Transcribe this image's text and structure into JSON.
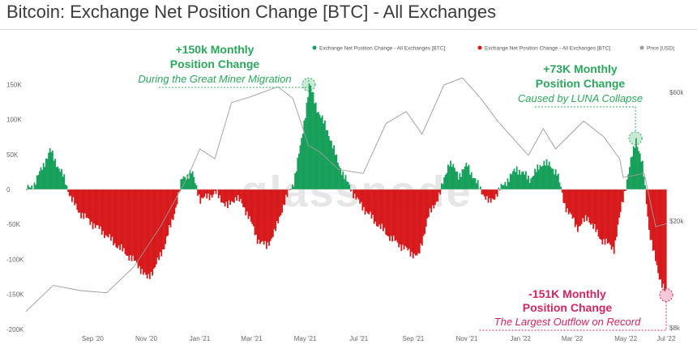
{
  "title": "Bitcoin: Exchange Net Position Change [BTC] - All Exchanges",
  "watermark": "glassnode",
  "colors": {
    "inflow": "#16a05a",
    "outflow": "#d7191c",
    "price": "#9b9b9b",
    "annotation_green": "#2aa85c",
    "annotation_red": "#d6245e"
  },
  "legend": [
    {
      "label": "Exchange Net Position Change - All Exchanges [BTC]",
      "color": "#16a05a"
    },
    {
      "label": "Exchange Net Position Change - All Exchanges [BTC]",
      "color": "#d7191c"
    },
    {
      "label": "Price [USD]",
      "color": "#9b9b9b"
    }
  ],
  "annotations": [
    {
      "line1": "+150k Monthly",
      "line2": "Position Change",
      "line3": "During the Great Miner Migration",
      "tone": "green",
      "date": "2021-05-19",
      "value": 150000
    },
    {
      "line1": "+73K Monthly",
      "line2": "Position Change",
      "line3": "Caused by LUNA Collapse",
      "tone": "green",
      "date": "2022-05-26",
      "value": 73000
    },
    {
      "line1": "-151K Monthly",
      "line2": "Position Change",
      "line3": "The Largest Outflow on Record",
      "tone": "red",
      "date": "2022-06-30",
      "value": -151000
    }
  ],
  "chart_data": {
    "type": "area",
    "x_start": "2020-07-01",
    "x_end": "2022-06-30",
    "x_ticks": [
      "Sep '20",
      "Nov '20",
      "Jan '21",
      "Mar '21",
      "May '21",
      "Jul '21",
      "Sep '21",
      "Nov '21",
      "Jan '22",
      "Mar '22",
      "May '22",
      "Jul '22"
    ],
    "y_left_ticks": [
      "150K",
      "100K",
      "50K",
      "0",
      "-50K",
      "-100K",
      "-150K",
      "-200K"
    ],
    "y_left_range": [
      -200000,
      165000
    ],
    "y_right_ticks": [
      "$60k",
      "$20k",
      "$8k"
    ],
    "y_right_scale": "log",
    "y_right_range": [
      8000,
      70000
    ],
    "grid": false,
    "legend_position": "top-right",
    "series": [
      {
        "kind": "position_change",
        "points": [
          [
            "2020-07-01",
            0
          ],
          [
            "2020-07-10",
            8000
          ],
          [
            "2020-07-20",
            35000
          ],
          [
            "2020-07-28",
            56000
          ],
          [
            "2020-08-03",
            40000
          ],
          [
            "2020-08-12",
            18000
          ],
          [
            "2020-08-20",
            -10000
          ],
          [
            "2020-08-28",
            -30000
          ],
          [
            "2020-09-10",
            -45000
          ],
          [
            "2020-09-25",
            -60000
          ],
          [
            "2020-10-10",
            -78000
          ],
          [
            "2020-10-25",
            -95000
          ],
          [
            "2020-11-05",
            -108000
          ],
          [
            "2020-11-15",
            -128000
          ],
          [
            "2020-11-25",
            -110000
          ],
          [
            "2020-12-05",
            -80000
          ],
          [
            "2020-12-15",
            -40000
          ],
          [
            "2020-12-25",
            15000
          ],
          [
            "2021-01-05",
            25000
          ],
          [
            "2021-01-15",
            -15000
          ],
          [
            "2021-02-01",
            -5000
          ],
          [
            "2021-02-15",
            -25000
          ],
          [
            "2021-02-25",
            -10000
          ],
          [
            "2021-03-10",
            -35000
          ],
          [
            "2021-03-20",
            -70000
          ],
          [
            "2021-03-31",
            -82000
          ],
          [
            "2021-04-10",
            -60000
          ],
          [
            "2021-04-20",
            -20000
          ],
          [
            "2021-05-01",
            10000
          ],
          [
            "2021-05-10",
            70000
          ],
          [
            "2021-05-19",
            150000
          ],
          [
            "2021-05-28",
            115000
          ],
          [
            "2021-06-10",
            80000
          ],
          [
            "2021-06-20",
            40000
          ],
          [
            "2021-07-01",
            10000
          ],
          [
            "2021-07-15",
            -20000
          ],
          [
            "2021-08-01",
            -45000
          ],
          [
            "2021-08-20",
            -70000
          ],
          [
            "2021-09-05",
            -85000
          ],
          [
            "2021-09-20",
            -97000
          ],
          [
            "2021-10-01",
            -40000
          ],
          [
            "2021-10-15",
            -5000
          ],
          [
            "2021-10-25",
            40000
          ],
          [
            "2021-11-05",
            20000
          ],
          [
            "2021-11-15",
            35000
          ],
          [
            "2021-11-25",
            10000
          ],
          [
            "2021-12-10",
            -20000
          ],
          [
            "2021-12-25",
            5000
          ],
          [
            "2022-01-10",
            30000
          ],
          [
            "2022-01-25",
            15000
          ],
          [
            "2022-02-10",
            40000
          ],
          [
            "2022-02-25",
            25000
          ],
          [
            "2022-03-05",
            -20000
          ],
          [
            "2022-03-20",
            -55000
          ],
          [
            "2022-04-01",
            -40000
          ],
          [
            "2022-04-15",
            -70000
          ],
          [
            "2022-05-01",
            -85000
          ],
          [
            "2022-05-10",
            -20000
          ],
          [
            "2022-05-20",
            40000
          ],
          [
            "2022-05-26",
            73000
          ],
          [
            "2022-06-03",
            30000
          ],
          [
            "2022-06-10",
            -60000
          ],
          [
            "2022-06-20",
            -120000
          ],
          [
            "2022-06-30",
            -151000
          ]
        ]
      },
      {
        "name": "Price [USD]",
        "kind": "price",
        "points": [
          [
            "2020-07-01",
            9200
          ],
          [
            "2020-08-01",
            11500
          ],
          [
            "2020-09-01",
            11000
          ],
          [
            "2020-10-01",
            10800
          ],
          [
            "2020-11-01",
            13500
          ],
          [
            "2020-12-01",
            19000
          ],
          [
            "2021-01-01",
            29000
          ],
          [
            "2021-01-15",
            37000
          ],
          [
            "2021-02-01",
            34000
          ],
          [
            "2021-02-20",
            55000
          ],
          [
            "2021-03-15",
            58000
          ],
          [
            "2021-04-14",
            63000
          ],
          [
            "2021-05-01",
            57000
          ],
          [
            "2021-05-19",
            38000
          ],
          [
            "2021-06-01",
            36000
          ],
          [
            "2021-06-22",
            31000
          ],
          [
            "2021-07-20",
            30000
          ],
          [
            "2021-08-15",
            46000
          ],
          [
            "2021-09-07",
            51000
          ],
          [
            "2021-09-25",
            42000
          ],
          [
            "2021-10-20",
            64000
          ],
          [
            "2021-11-10",
            68000
          ],
          [
            "2021-12-01",
            57000
          ],
          [
            "2021-12-20",
            47000
          ],
          [
            "2022-01-24",
            35000
          ],
          [
            "2022-02-10",
            44000
          ],
          [
            "2022-02-24",
            37000
          ],
          [
            "2022-03-28",
            47000
          ],
          [
            "2022-04-20",
            41000
          ],
          [
            "2022-05-08",
            34000
          ],
          [
            "2022-05-12",
            29000
          ],
          [
            "2022-06-05",
            30000
          ],
          [
            "2022-06-18",
            19000
          ],
          [
            "2022-06-30",
            19500
          ]
        ]
      }
    ]
  }
}
